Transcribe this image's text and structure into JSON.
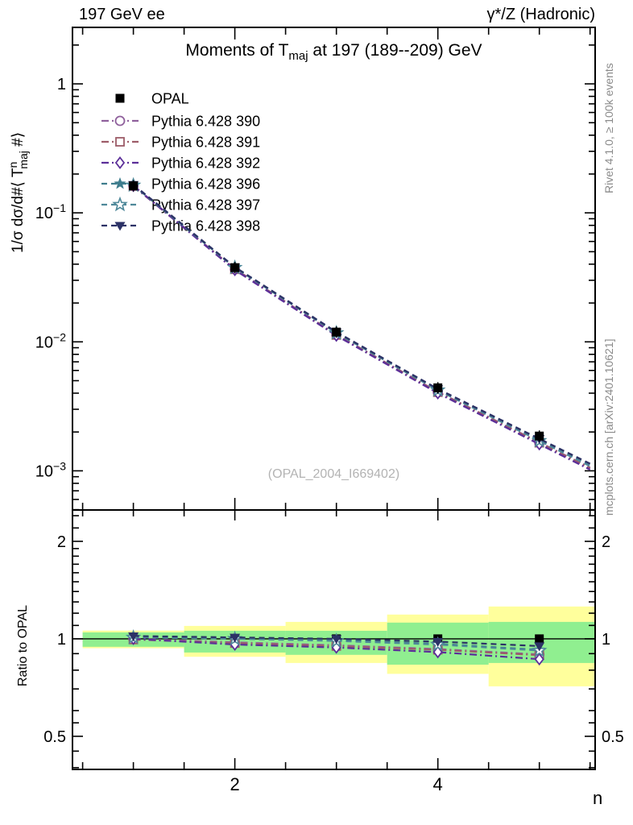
{
  "header": {
    "left": "197 GeV ee",
    "right": "γ*/Z (Hadronic)"
  },
  "title": {
    "pre": "Moments of T",
    "sub": "maj",
    "post": " at 197 (189--209) GeV"
  },
  "axes": {
    "ylabel": {
      "pre": "1/σ  dσ/d#⟨ T",
      "sup": "n",
      "sub": "maj",
      "post": " #⟩"
    },
    "ratio_ylabel": "Ratio to OPAL",
    "xlabel": "n"
  },
  "watermark": "(OPAL_2004_I669402)",
  "side_notes": {
    "top": "Rivet 4.1.0, ≥ 100k events",
    "bottom": "mcplots.cern.ch [arXiv:2401.10621]"
  },
  "colors": {
    "band_yellow": "#ffff9c",
    "band_green": "#90ef90",
    "frame": "#000000",
    "gray_text": "#8a8a8a",
    "watermark_gray": "#b3b3b3"
  },
  "chart_data": [
    {
      "id": "main",
      "type": "line",
      "title": "Moments of T_maj at 197 (189--209) GeV",
      "xlabel": "n",
      "ylabel": "1/σ dσ/d#⟨ T^n_maj #⟩",
      "yscale": "log",
      "xlim": [
        0.4,
        5.55
      ],
      "ylim": [
        0.000497,
        2.74
      ],
      "x": [
        1,
        2,
        3,
        4,
        5
      ],
      "yticks": {
        "values": [
          1,
          0.1,
          0.01,
          0.001
        ],
        "labels": [
          "1",
          "10^−1",
          "10^−2",
          "10^−3"
        ]
      },
      "xticks": {
        "major": [
          2,
          4
        ],
        "minor_step": 0.5
      },
      "legend_position": "top-left",
      "series": [
        {
          "name": "OPAL",
          "color": "#000000",
          "marker": "square",
          "line": "none",
          "values": [
            0.162,
            0.0376,
            0.0119,
            0.0044,
            0.00186
          ]
        },
        {
          "name": "Pythia 6.428 390",
          "color": "#8f609c",
          "marker": "circle-open",
          "line": "dashdot",
          "values": [
            0.162,
            0.0367,
            0.01136,
            0.00409,
            0.00166
          ]
        },
        {
          "name": "Pythia 6.428 391",
          "color": "#9d5c68",
          "marker": "square-open",
          "line": "dashdot",
          "values": [
            0.1612,
            0.0365,
            0.0113,
            0.00407,
            0.00165
          ]
        },
        {
          "name": "Pythia 6.428 392",
          "color": "#5c2f99",
          "marker": "diamond-open",
          "line": "dashdot",
          "values": [
            0.162,
            0.0361,
            0.01119,
            0.004,
            0.00161
          ]
        },
        {
          "name": "Pythia 6.428 396",
          "color": "#3e7d8d",
          "marker": "star",
          "line": "dashed",
          "values": [
            0.1636,
            0.0378,
            0.01178,
            0.00425,
            0.00172
          ]
        },
        {
          "name": "Pythia 6.428 397",
          "color": "#4e8899",
          "marker": "star-open",
          "line": "dashed",
          "values": [
            0.1636,
            0.0376,
            0.01172,
            0.00422,
            0.00171
          ]
        },
        {
          "name": "Pythia 6.428 398",
          "color": "#2c3266",
          "marker": "tri-down",
          "line": "dashed",
          "values": [
            0.1652,
            0.038,
            0.0119,
            0.00431,
            0.00177
          ]
        }
      ]
    },
    {
      "id": "ratio",
      "type": "line",
      "ylabel": "Ratio to OPAL",
      "yscale": "log",
      "xlim": [
        0.4,
        5.55
      ],
      "ylim": [
        0.395,
        2.5
      ],
      "x": [
        1,
        2,
        3,
        4,
        5
      ],
      "yticks": {
        "values": [
          2,
          1,
          0.5
        ],
        "labels": [
          "2",
          "1",
          "0.5"
        ]
      },
      "yticks_minor": [
        0.4,
        0.45,
        0.55,
        0.6,
        0.7,
        0.8,
        0.9,
        1.1,
        1.2,
        1.3,
        1.4,
        1.5,
        1.6,
        1.7,
        1.8,
        1.9,
        2.2,
        2.4
      ],
      "xticks": {
        "major": [
          2,
          4
        ],
        "labels": [
          "2",
          "4"
        ],
        "minor_step": 0.5
      },
      "reference_line": 1,
      "bands": {
        "bin_edges": [
          0.5,
          1.5,
          2.5,
          3.5,
          4.5,
          5.55
        ],
        "yellow": [
          [
            0.935,
            1.06
          ],
          [
            0.88,
            1.096
          ],
          [
            0.842,
            1.128
          ],
          [
            0.779,
            1.188
          ],
          [
            0.713,
            1.258
          ]
        ],
        "green": [
          [
            0.945,
            1.047
          ],
          [
            0.907,
            1.059
          ],
          [
            0.892,
            1.059
          ],
          [
            0.832,
            1.122
          ],
          [
            0.842,
            1.128
          ]
        ]
      },
      "series": [
        {
          "name": "OPAL",
          "values": [
            1,
            1,
            1,
            1,
            1
          ]
        },
        {
          "name": "Pythia 6.428 390",
          "values": [
            1.0,
            0.975,
            0.955,
            0.93,
            0.895
          ]
        },
        {
          "name": "Pythia 6.428 391",
          "values": [
            0.995,
            0.97,
            0.95,
            0.925,
            0.89
          ]
        },
        {
          "name": "Pythia 6.428 392",
          "values": [
            1.0,
            0.96,
            0.94,
            0.91,
            0.865
          ]
        },
        {
          "name": "Pythia 6.428 396",
          "values": [
            1.01,
            1.005,
            0.99,
            0.965,
            0.925
          ]
        },
        {
          "name": "Pythia 6.428 397",
          "values": [
            1.01,
            1.0,
            0.985,
            0.96,
            0.92
          ]
        },
        {
          "name": "Pythia 6.428 398",
          "values": [
            1.02,
            1.01,
            1.0,
            0.98,
            0.95
          ]
        }
      ]
    }
  ]
}
